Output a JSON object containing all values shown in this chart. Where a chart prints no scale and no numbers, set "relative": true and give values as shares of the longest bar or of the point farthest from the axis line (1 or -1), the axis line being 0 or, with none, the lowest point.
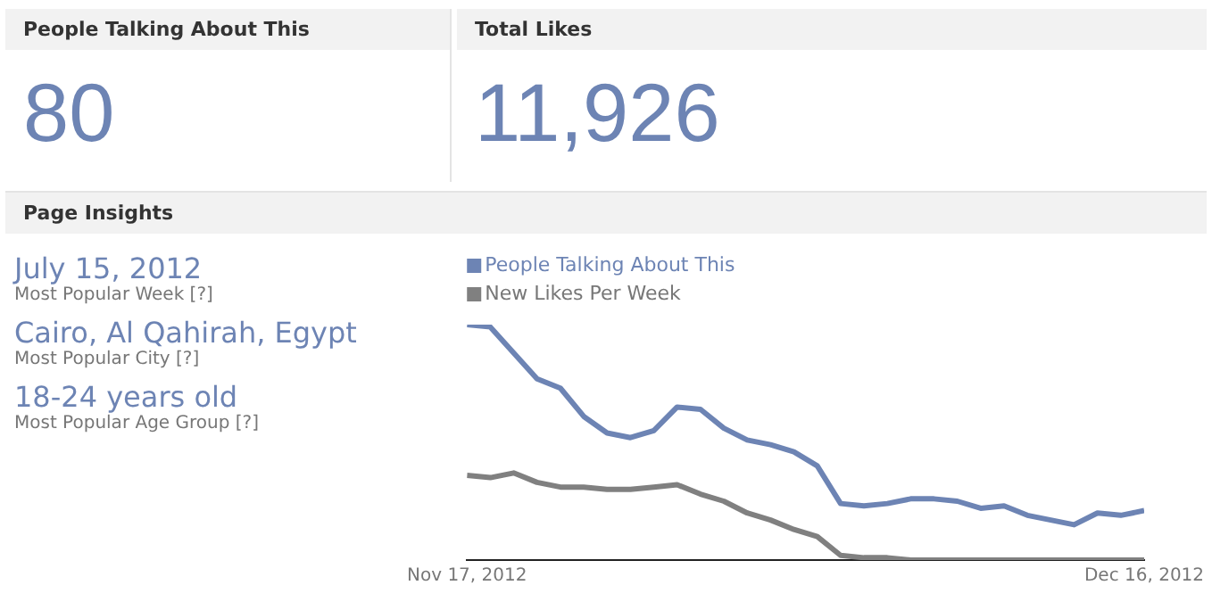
{
  "chart_data": [
    {
      "type": "other",
      "title": "People Talking About This",
      "annotations": [
        "80"
      ]
    },
    {
      "type": "other",
      "title": "Total Likes",
      "annotations": [
        "11,926"
      ]
    },
    {
      "type": "other",
      "title": "Page Insights",
      "annotations": [
        "July 15, 2012",
        "Most Popular Week [?]",
        "Cairo, Al Qahirah, Egypt",
        "Most Popular City [?]",
        "18-24 years old",
        "Most Popular Age Group [?]"
      ]
    },
    {
      "type": "line",
      "relative": true,
      "legend": "top left",
      "grid": false,
      "tick_labels": "x",
      "marker": "none",
      "line_style": "solid",
      "x": [
        "2012-11-17",
        "2012-11-18",
        "2012-11-19",
        "2012-11-20",
        "2012-11-21",
        "2012-11-22",
        "2012-11-23",
        "2012-11-24",
        "2012-11-25",
        "2012-11-26",
        "2012-11-27",
        "2012-11-28",
        "2012-11-29",
        "2012-11-30",
        "2012-12-01",
        "2012-12-02",
        "2012-12-03",
        "2012-12-04",
        "2012-12-05",
        "2012-12-06",
        "2012-12-07",
        "2012-12-08",
        "2012-12-09",
        "2012-12-10",
        "2012-12-11",
        "2012-12-12",
        "2012-12-13",
        "2012-12-14",
        "2012-12-15",
        "2012-12-16"
      ],
      "xlim": [
        "2012-11-17",
        "2012-12-16"
      ],
      "xticks": [
        {
          "value": "2012-11-17",
          "label": "Nov 17, 2012"
        },
        {
          "value": "2012-12-16",
          "label": "Dec 16, 2012"
        }
      ],
      "series": [
        {
          "name": "People Talking About This",
          "color": "#6d84b4",
          "values": [
            1,
            0.99,
            0.88,
            0.77,
            0.73,
            0.61,
            0.54,
            0.52,
            0.55,
            0.65,
            0.64,
            0.56,
            0.51,
            0.49,
            0.46,
            0.4,
            0.24,
            0.23,
            0.24,
            0.26,
            0.26,
            0.25,
            0.22,
            0.23,
            0.19,
            0.17,
            0.15,
            0.2,
            0.19,
            0.21
          ]
        },
        {
          "name": "New Likes Per Week",
          "color": "#808080",
          "values": [
            0.36,
            0.35,
            0.37,
            0.33,
            0.31,
            0.31,
            0.3,
            0.3,
            0.31,
            0.32,
            0.28,
            0.25,
            0.2,
            0.17,
            0.13,
            0.1,
            0.02,
            0.01,
            0.01,
            0,
            0,
            0,
            0,
            0,
            0,
            0,
            0,
            0,
            0,
            0
          ]
        }
      ]
    }
  ]
}
